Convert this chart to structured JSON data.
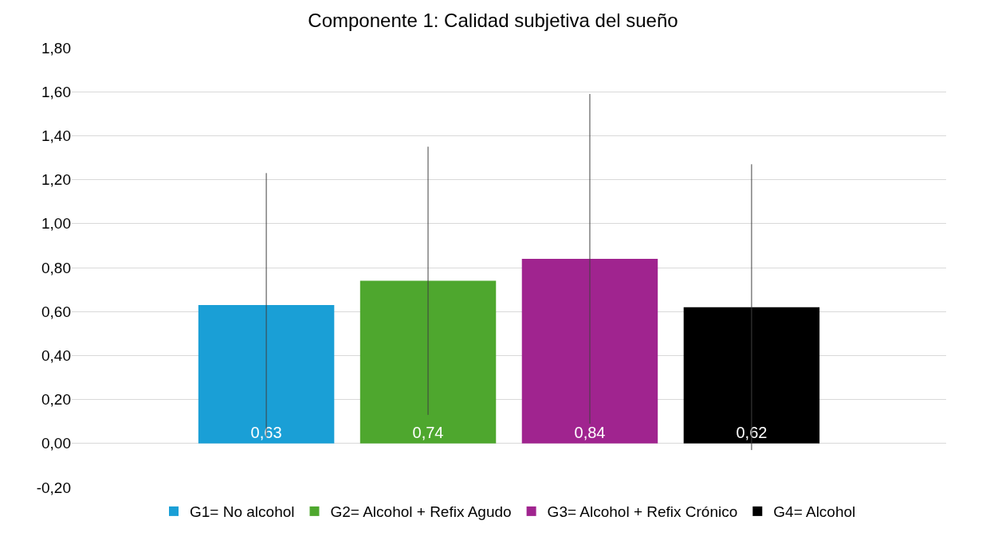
{
  "chart_data": {
    "type": "bar",
    "title": "Componente 1: Calidad subjetiva del sueño",
    "categories": [
      null
    ],
    "series": [
      {
        "name": "G1= No alcohol",
        "color": "#1a9fd6",
        "values": [
          0.63
        ],
        "errors": [
          0.6
        ],
        "value_labels": [
          "0,63"
        ]
      },
      {
        "name": "G2= Alcohol + Refix Agudo",
        "color": "#4ea72e",
        "values": [
          0.74
        ],
        "errors": [
          0.61
        ],
        "value_labels": [
          "0,74"
        ]
      },
      {
        "name": "G3= Alcohol + Refix Crónico",
        "color": "#a0248f",
        "values": [
          0.84
        ],
        "errors": [
          0.75
        ],
        "value_labels": [
          "0,84"
        ]
      },
      {
        "name": "G4= Alcohol",
        "color": "#000000",
        "values": [
          0.62
        ],
        "errors": [
          0.65
        ],
        "value_labels": [
          "0,62"
        ]
      }
    ],
    "ylim": [
      -0.2,
      1.8
    ],
    "yticks": [
      {
        "value": -0.2,
        "label": "-0,20"
      },
      {
        "value": 0,
        "label": "0,00"
      },
      {
        "value": 0.2,
        "label": "0,20"
      },
      {
        "value": 0.4,
        "label": "0,40"
      },
      {
        "value": 0.6,
        "label": "0,60"
      },
      {
        "value": 0.8,
        "label": "0,80"
      },
      {
        "value": 1,
        "label": "1,00"
      },
      {
        "value": 1.2,
        "label": "1,20"
      },
      {
        "value": 1.4,
        "label": "1,40"
      },
      {
        "value": 1.6,
        "label": "1,60"
      },
      {
        "value": 1.8,
        "label": "1,80"
      }
    ],
    "grid": "y",
    "legend": "bottom"
  }
}
